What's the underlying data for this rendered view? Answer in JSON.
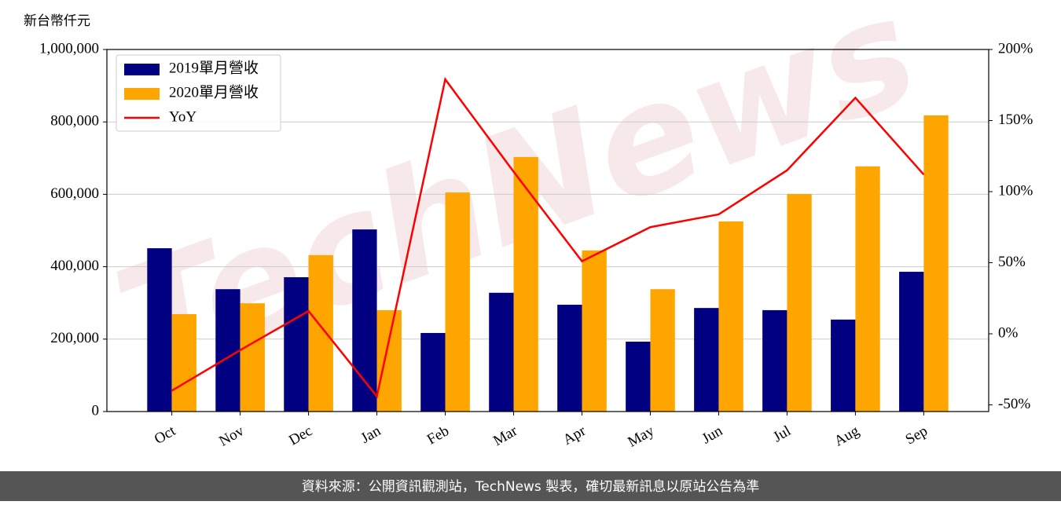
{
  "chart_data": {
    "type": "bar-line",
    "y_label": "新台幣仟元",
    "watermark": "TechNews",
    "footer": "資料來源：公開資訊觀測站，TechNews 製表，確切最新訊息以原站公告為準",
    "categories": [
      "Oct",
      "Nov",
      "Dec",
      "Jan",
      "Feb",
      "Mar",
      "Apr",
      "May",
      "Jun",
      "Jul",
      "Aug",
      "Sep"
    ],
    "series": [
      {
        "name": "2019單月營收",
        "color": "#000080",
        "type": "bar",
        "values": [
          451000,
          338000,
          371000,
          503000,
          217000,
          328000,
          295000,
          193000,
          286000,
          280000,
          254000,
          386000
        ]
      },
      {
        "name": "2020單月營收",
        "color": "#ffa500",
        "type": "bar",
        "values": [
          269000,
          299000,
          432000,
          280000,
          605000,
          703000,
          445000,
          338000,
          525000,
          601000,
          677000,
          818000
        ]
      },
      {
        "name": "YoY",
        "color": "#ff0000",
        "type": "line",
        "axis": "y2",
        "values": [
          -40,
          -11.5,
          16,
          -44,
          179,
          114,
          51,
          75,
          84,
          115,
          166,
          112
        ]
      }
    ],
    "ylim": [
      0,
      1000000
    ],
    "yticks": [
      {
        "value": 0,
        "label": "0"
      },
      {
        "value": 200000,
        "label": "200,000"
      },
      {
        "value": 400000,
        "label": "400,000"
      },
      {
        "value": 600000,
        "label": "600,000"
      },
      {
        "value": 800000,
        "label": "800,000"
      },
      {
        "value": 1000000,
        "label": "1,000,000"
      }
    ],
    "y2lim": [
      -54.7,
      200
    ],
    "y2ticks": [
      {
        "value": -50,
        "label": "-50%"
      },
      {
        "value": 0,
        "label": "0%"
      },
      {
        "value": 50,
        "label": "50%"
      },
      {
        "value": 100,
        "label": "100%"
      },
      {
        "value": 150,
        "label": "150%"
      },
      {
        "value": 200,
        "label": "200%"
      }
    ],
    "grid": true,
    "legend": "upper left"
  }
}
